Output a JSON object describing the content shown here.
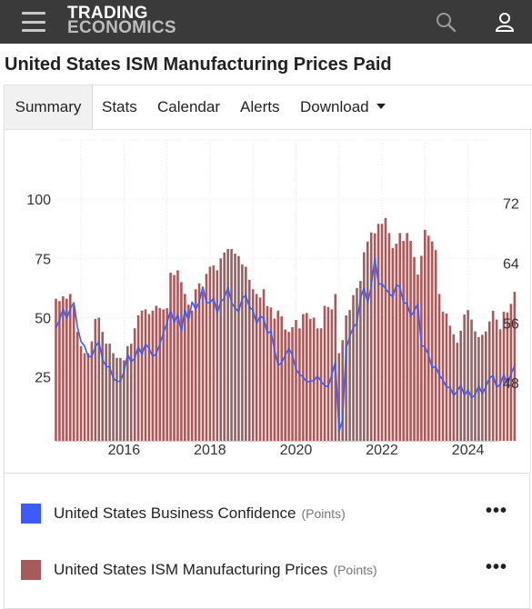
{
  "header": {
    "logo_line1": "TRADING",
    "logo_line2": "ECONOMICS",
    "menu_icon": "hamburger-menu-icon",
    "search_icon": "search-icon",
    "user_icon": "user-icon"
  },
  "page": {
    "title": "United States ISM Manufacturing Prices Paid"
  },
  "tabs": [
    {
      "label": "Summary",
      "active": true
    },
    {
      "label": "Stats"
    },
    {
      "label": "Calendar"
    },
    {
      "label": "Alerts"
    },
    {
      "label": "Download"
    }
  ],
  "legend": [
    {
      "name": "United States Business Confidence",
      "unit": "(Points)",
      "color": "#3d5afe",
      "menu": "•••"
    },
    {
      "name": "United States ISM Manufacturing Prices",
      "unit": "(Points)",
      "color": "#a85a5a",
      "menu": "•••"
    }
  ],
  "chart_data": {
    "type": "bar",
    "x_tick_labels": [
      "2016",
      "2018",
      "2020",
      "2022",
      "2024"
    ],
    "left_axis": {
      "ticks": [
        "25",
        "50",
        "75",
        "100"
      ],
      "range": [
        -2,
        125
      ]
    },
    "right_axis": {
      "ticks": [
        "48",
        "56",
        "64",
        "72"
      ],
      "range": [
        40.25,
        80.43
      ]
    },
    "grid": true,
    "series": [
      {
        "name": "United States ISM Manufacturing Prices",
        "axis": "left",
        "style": "bar",
        "color": "#a85a5a",
        "start": "2014-06",
        "frequency": "monthly",
        "values": [
          58.0,
          57.0,
          59.0,
          58.0,
          60.0,
          55.0,
          44.0,
          38.0,
          35.0,
          35.0,
          40.0,
          49.5,
          50.0,
          44.0,
          39.0,
          39.0,
          35.0,
          33.0,
          33.0,
          32.0,
          38.0,
          39.0,
          45.5,
          51.0,
          53.0,
          53.5,
          51.5,
          53.0,
          55.0,
          54.0,
          53.5,
          54.0,
          69.0,
          68.0,
          70.0,
          65.0,
          60.0,
          55.5,
          53.0,
          62.0,
          64.5,
          61.0,
          68.5,
          71.5,
          72.0,
          70.0,
          75.0,
          77.5,
          79.0,
          79.0,
          77.0,
          76.0,
          72.5,
          71.5,
          66.0,
          62.0,
          60.0,
          58.5,
          62.0,
          54.9,
          54.3,
          49.6,
          53.0,
          50.5,
          45.0,
          44.0,
          46.0,
          49.0,
          45.5,
          51.5,
          52.0,
          49.5,
          50.0,
          45.5,
          45.5,
          55.0,
          54.5,
          53.5,
          60.0,
          35.0,
          40.5,
          51.0,
          53.2,
          59.5,
          62.5,
          65.5,
          77.6,
          82.1,
          86.0,
          85.6,
          89.6,
          89.6,
          92.1,
          85.7,
          79.4,
          81.2,
          85.7,
          82.4,
          85.7,
          82.4,
          75.6,
          68.2,
          76.1,
          87.1,
          84.6,
          82.2,
          78.5,
          60.0,
          52.5,
          51.7,
          46.6,
          43.0,
          39.4,
          44.5,
          51.3,
          53.2,
          49.2,
          44.2,
          41.8,
          42.8,
          44.2,
          48.4,
          52.9,
          49.2,
          45.1,
          52.5,
          52.2,
          55.8,
          60.9
        ]
      },
      {
        "name": "United States Business Confidence",
        "axis": "right",
        "style": "line",
        "color": "#3d5afe",
        "start": "2014-06",
        "frequency": "monthly",
        "values": [
          55.3,
          56.4,
          57.9,
          56.6,
          57.9,
          58.7,
          55.5,
          53.5,
          52.9,
          51.5,
          51.5,
          52.8,
          53.5,
          51.1,
          50.2,
          50.1,
          48.6,
          48.2,
          48.2,
          49.5,
          51.8,
          50.8,
          51.3,
          52.8,
          51.8,
          53.2,
          52.6,
          51.5,
          51.9,
          53.2,
          54.7,
          56.0,
          57.7,
          56.0,
          57.2,
          54.8,
          57.8,
          56.3,
          58.8,
          57.8,
          58.8,
          60.8,
          58.7,
          58.7,
          59.3,
          57.3,
          58.8,
          59.3,
          60.8,
          58.7,
          58.0,
          57.5,
          59.3,
          59.7,
          58.1,
          57.7,
          55.9,
          56.9,
          56.6,
          54.6,
          54.9,
          52.4,
          50.3,
          50.7,
          51.7,
          52.6,
          51.7,
          49.8,
          49.1,
          48.8,
          48.1,
          48.2,
          48.3,
          48.9,
          48.2,
          47.6,
          47.5,
          49.1,
          50.8,
          41.5,
          43.1,
          52.6,
          54.2,
          55.4,
          56.0,
          59.3,
          60.7,
          58.7,
          60.8,
          64.7,
          61.2,
          61.2,
          60.6,
          59.9,
          59.5,
          61.1,
          60.8,
          58.7,
          58.6,
          56.9,
          57.6,
          58.6,
          53.0,
          52.8,
          51.7,
          50.0,
          50.2,
          49.0,
          48.4,
          47.4,
          47.4,
          46.3,
          46.9,
          47.7,
          46.3,
          47.1,
          46.0,
          46.4,
          47.6,
          46.5,
          47.5,
          48.6,
          49.0,
          47.4,
          47.8,
          49.1,
          47.8,
          49.2,
          50.3
        ]
      }
    ]
  }
}
